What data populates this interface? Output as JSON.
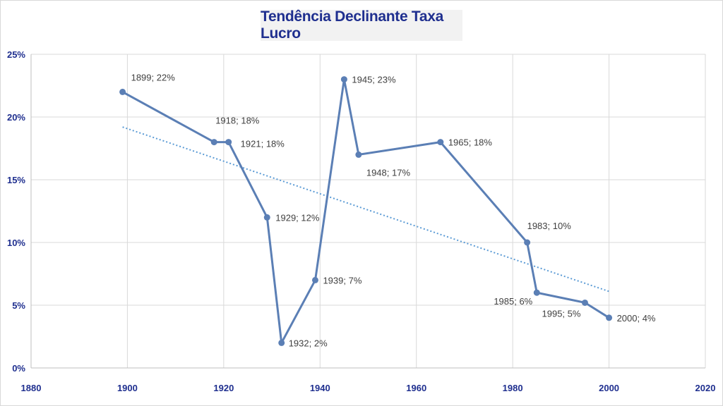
{
  "chart_data": {
    "type": "scatter",
    "title": "Tendência Declinante Taxa Lucro",
    "xlabel": "",
    "ylabel": "",
    "xlim": [
      1880,
      2020
    ],
    "ylim": [
      0,
      0.25
    ],
    "x_ticks": [
      "1880",
      "1900",
      "1920",
      "1940",
      "1960",
      "1980",
      "2000",
      "2020"
    ],
    "y_ticks": [
      "0%",
      "5%",
      "10%",
      "15%",
      "20%",
      "25%"
    ],
    "grid": true,
    "legend": "none",
    "line_color": "#5b7fb5",
    "trend_color": "#5b9bd5",
    "series": [
      {
        "x": [
          1899,
          1918,
          1921,
          1929,
          1932,
          1939,
          1945,
          1948,
          1965,
          1983,
          1985,
          1995,
          2000
        ],
        "y": [
          0.22,
          0.18,
          0.18,
          0.12,
          0.02,
          0.07,
          0.23,
          0.17,
          0.18,
          0.1,
          0.06,
          0.052,
          0.04
        ],
        "labels": [
          "1899; 22%",
          "1918; 18%",
          "1921; 18%",
          "1929; 12%",
          "1932; 2%",
          "1939; 7%",
          "1945; 23%",
          "1948; 17%",
          "1965; 18%",
          "1983; 10%",
          "1985; 6%",
          "1995; 5%",
          "2000; 4%"
        ]
      }
    ],
    "trendline": {
      "type": "linear",
      "x": [
        1899,
        2000
      ],
      "y": [
        0.192,
        0.061
      ]
    }
  }
}
